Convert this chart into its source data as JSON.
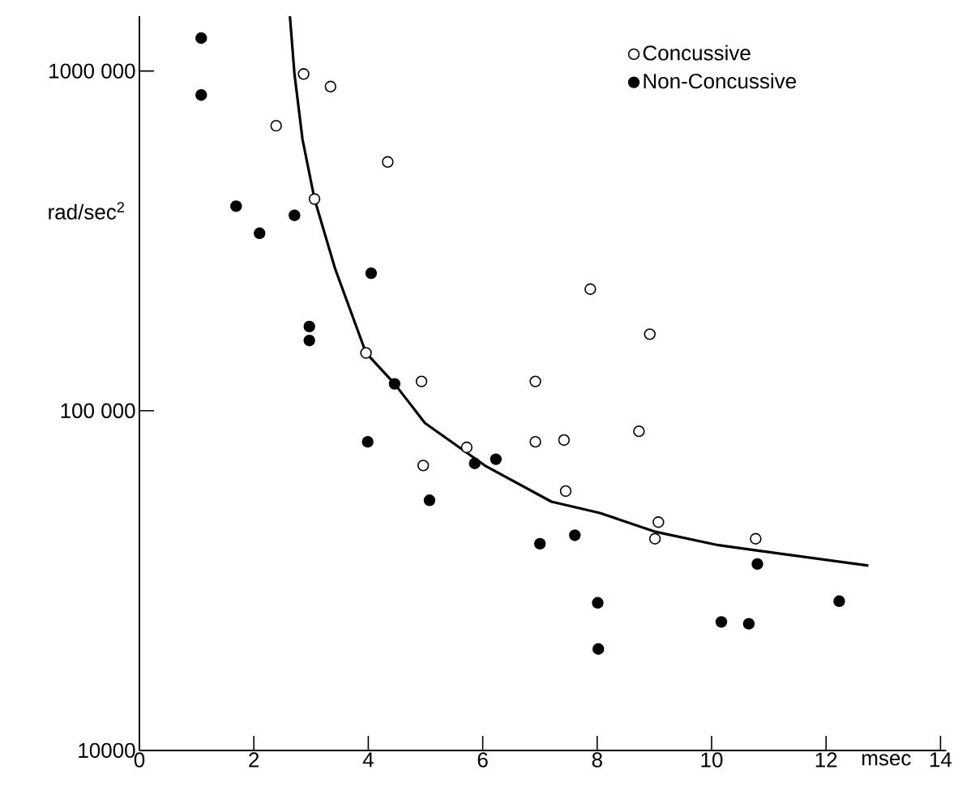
{
  "chart_data": {
    "type": "scatter",
    "xlabel": "msec",
    "ylabel": "rad/sec$^{2}$",
    "xlim": [
      0,
      14.1
    ],
    "ylim": [
      10000,
      1450000
    ],
    "log": "y",
    "xticks": [
      0,
      2,
      4,
      6,
      8,
      10,
      12,
      14
    ],
    "yticks": [
      10000,
      {
        "value": 100000,
        "label": "100 000"
      },
      {
        "value": 1000000,
        "label": "1000 000"
      }
    ],
    "grid": false,
    "legend": "top right",
    "series": [
      {
        "name": "Concussive",
        "color": "#ffffff",
        "x": [
          2.87,
          3.34,
          2.39,
          4.34,
          3.06,
          3.96,
          4.93,
          6.92,
          7.88,
          8.92,
          6.92,
          7.42,
          8.73,
          7.45,
          9.07,
          9.01,
          10.77,
          4.96,
          5.72
        ],
        "values": [
          980000,
          900000,
          690000,
          540000,
          420000,
          148000,
          122000,
          122000,
          228000,
          168000,
          81000,
          82000,
          87000,
          58000,
          47000,
          42000,
          42000,
          69000,
          78000
        ]
      },
      {
        "name": "Non-Concussive",
        "color": "#000000",
        "x": [
          1.08,
          1.08,
          1.69,
          2.1,
          2.71,
          4.05,
          2.97,
          2.97,
          4.46,
          3.99,
          6.23,
          5.86,
          7.0,
          7.61,
          8.01,
          8.02,
          10.17,
          10.65,
          10.8,
          12.23,
          5.07
        ],
        "values": [
          1250000,
          850000,
          400000,
          333000,
          376000,
          254000,
          177000,
          161000,
          120000,
          81000,
          72000,
          70000,
          40600,
          43000,
          27200,
          19900,
          23900,
          23600,
          35400,
          27500,
          54500
        ]
      },
      {
        "type": "line",
        "color": "#000000",
        "x": [
          2.63,
          2.71,
          2.85,
          3.06,
          3.42,
          3.96,
          4.46,
          4.99,
          6.06,
          7.2,
          8.05,
          9.0,
          10.12,
          10.78,
          12.74
        ],
        "values": [
          1450000,
          980000,
          630000,
          420000,
          262000,
          148000,
          120000,
          92000,
          68600,
          54000,
          50000,
          44100,
          40200,
          38800,
          35000
        ]
      }
    ]
  }
}
